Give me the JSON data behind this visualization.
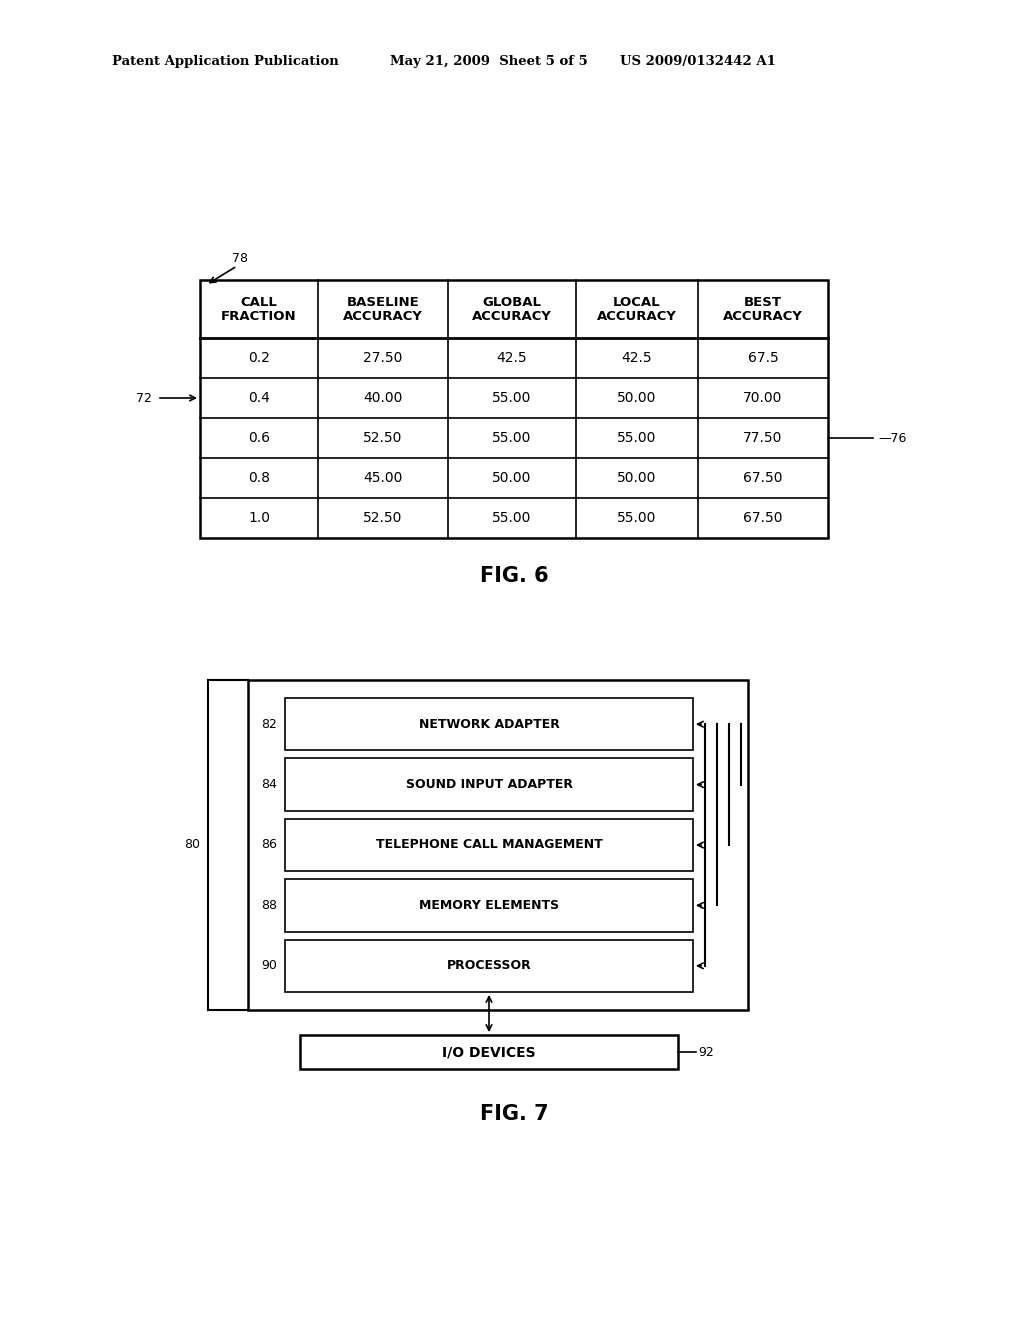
{
  "header_left": "Patent Application Publication",
  "header_mid": "May 21, 2009  Sheet 5 of 5",
  "header_right": "US 2009/0132442 A1",
  "fig6_label": "FIG. 6",
  "fig7_label": "FIG. 7",
  "table_headers": [
    "CALL\nFRACTION",
    "BASELINE\nACCURACY",
    "GLOBAL\nACCURACY",
    "LOCAL\nACCURACY",
    "BEST\nACCURACY"
  ],
  "table_data": [
    [
      "0.2",
      "27.50",
      "42.5",
      "42.5",
      "67.5"
    ],
    [
      "0.4",
      "40.00",
      "55.00",
      "50.00",
      "70.00"
    ],
    [
      "0.6",
      "52.50",
      "55.00",
      "55.00",
      "77.50"
    ],
    [
      "0.8",
      "45.00",
      "50.00",
      "50.00",
      "67.50"
    ],
    [
      "1.0",
      "52.50",
      "55.00",
      "55.00",
      "67.50"
    ]
  ],
  "label_78": "78",
  "label_72": "72",
  "label_76": "76",
  "label_80": "80",
  "label_82": "82",
  "label_84": "84",
  "label_86": "86",
  "label_88": "88",
  "label_90": "90",
  "label_92": "92",
  "box_labels": [
    "NETWORK ADAPTER",
    "SOUND INPUT ADAPTER",
    "TELEPHONE CALL MANAGEMENT",
    "MEMORY ELEMENTS",
    "PROCESSOR"
  ],
  "io_label": "I/O DEVICES",
  "bg_color": "#ffffff",
  "text_color": "#000000"
}
